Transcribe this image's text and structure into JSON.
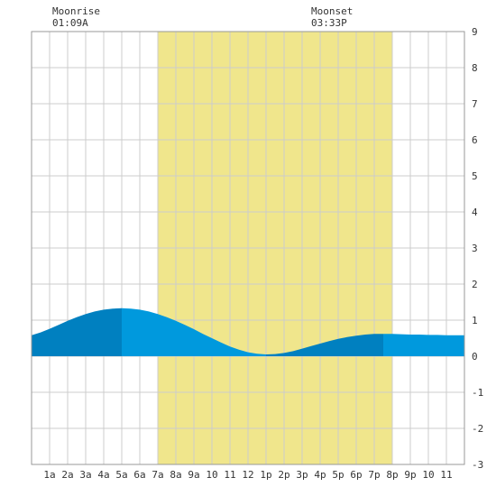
{
  "moon": {
    "moonrise_label": "Moonrise",
    "moonrise_time": "01:09A",
    "moonset_label": "Moonset",
    "moonset_time": "03:33P"
  },
  "chart_data": {
    "type": "area",
    "title": "",
    "xlabel": "",
    "ylabel": "",
    "x_tick_labels": [
      "1a",
      "2a",
      "3a",
      "4a",
      "5a",
      "6a",
      "7a",
      "8a",
      "9a",
      "10",
      "11",
      "12",
      "1p",
      "2p",
      "3p",
      "4p",
      "5p",
      "6p",
      "7p",
      "8p",
      "9p",
      "10",
      "11"
    ],
    "xlim_hours": [
      0,
      24
    ],
    "ylim": [
      -3,
      9
    ],
    "y_ticks": [
      -3,
      -2,
      -1,
      0,
      1,
      2,
      3,
      4,
      5,
      6,
      7,
      8,
      9
    ],
    "grid": true,
    "daylight_hours": [
      7,
      20
    ],
    "moonrise_hour": 1.15,
    "moonset_hour": 15.55,
    "series": [
      {
        "x": [
          0,
          0.5,
          1,
          1.5,
          2,
          2.5,
          3,
          3.5,
          4,
          4.5,
          5,
          5.5,
          6,
          6.5,
          7,
          7.5,
          8,
          8.5,
          9,
          9.5,
          10,
          10.5,
          11,
          11.5,
          12,
          12.5,
          13,
          13.5,
          14,
          14.5,
          15,
          15.5,
          16,
          16.5,
          17,
          17.5,
          18,
          18.5,
          19,
          19.5,
          20,
          20.5,
          21,
          21.5,
          22,
          22.5,
          23,
          23.5,
          24
        ],
        "values": [
          0.58,
          0.66,
          0.76,
          0.87,
          0.98,
          1.08,
          1.17,
          1.24,
          1.29,
          1.32,
          1.33,
          1.32,
          1.29,
          1.24,
          1.17,
          1.08,
          0.98,
          0.87,
          0.75,
          0.62,
          0.5,
          0.38,
          0.27,
          0.18,
          0.11,
          0.07,
          0.05,
          0.06,
          0.09,
          0.14,
          0.21,
          0.28,
          0.35,
          0.42,
          0.48,
          0.53,
          0.57,
          0.6,
          0.62,
          0.62,
          0.62,
          0.61,
          0.6,
          0.6,
          0.59,
          0.59,
          0.58,
          0.58,
          0.58
        ]
      }
    ],
    "colors": {
      "daylight": "#f0e68c",
      "tide_dark": "#0080c0",
      "tide_light": "#0099dd",
      "grid": "#cccccc",
      "axis_text": "#333333"
    }
  }
}
